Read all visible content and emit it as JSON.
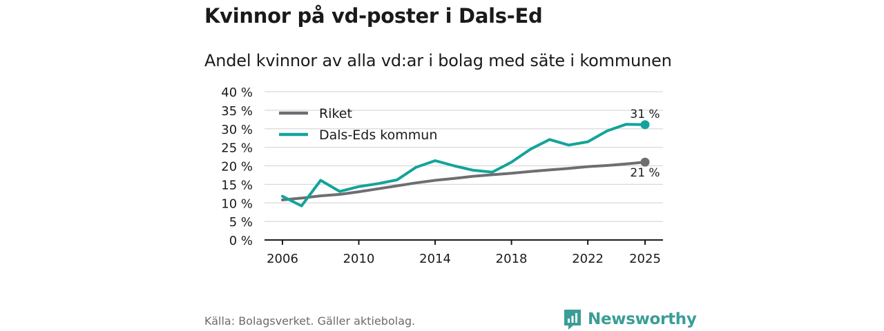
{
  "title": "Kvinnor på vd-poster i Dals-Ed",
  "subtitle": "Andel kvinnor av alla vd:ar i bolag med säte i kommunen",
  "source": "Källa: Bolagsverket. Gäller aktiebolag.",
  "brand": {
    "name": "Newsworthy",
    "icon": "newsworthy-logo-icon",
    "color": "#3a9e96"
  },
  "colors": {
    "riket": "#6e6d72",
    "dalsed": "#14a39a",
    "grid": "#d9d9d9",
    "axis": "#1a1a1a"
  },
  "chart_data": {
    "type": "line",
    "title": "Kvinnor på vd-poster i Dals-Ed",
    "subtitle": "Andel kvinnor av alla vd:ar i bolag med säte i kommunen",
    "xlabel": "",
    "ylabel": "",
    "xlim": [
      2006,
      2025
    ],
    "ylim": [
      0,
      40
    ],
    "x_ticks": [
      2006,
      2010,
      2014,
      2018,
      2022,
      2025
    ],
    "x_tick_labels": [
      "2006",
      "2010",
      "2014",
      "2018",
      "2022",
      "2025"
    ],
    "y_ticks": [
      0,
      5,
      10,
      15,
      20,
      25,
      30,
      35,
      40
    ],
    "y_tick_labels": [
      "0 %",
      "5 %",
      "10 %",
      "15 %",
      "20 %",
      "25 %",
      "30 %",
      "35 %",
      "40 %"
    ],
    "grid": true,
    "legend_position": "top-left",
    "x": [
      2006,
      2007,
      2008,
      2009,
      2010,
      2011,
      2012,
      2013,
      2014,
      2015,
      2016,
      2017,
      2018,
      2019,
      2020,
      2021,
      2022,
      2023,
      2024,
      2025
    ],
    "series": [
      {
        "name": "Riket",
        "color": "#6e6d72",
        "values": [
          10.8,
          11.3,
          11.9,
          12.3,
          13.0,
          13.8,
          14.6,
          15.4,
          16.1,
          16.6,
          17.2,
          17.6,
          18.0,
          18.5,
          18.9,
          19.3,
          19.8,
          20.1,
          20.5,
          21.0
        ],
        "end_label": "21 %"
      },
      {
        "name": "Dals-Eds kommun",
        "color": "#14a39a",
        "values": [
          11.8,
          9.2,
          16.1,
          13.1,
          14.4,
          15.2,
          16.2,
          19.6,
          21.4,
          20.0,
          18.8,
          18.3,
          21.0,
          24.5,
          27.1,
          25.6,
          26.5,
          29.4,
          31.2,
          31.1
        ],
        "end_label": "31 %"
      }
    ]
  }
}
